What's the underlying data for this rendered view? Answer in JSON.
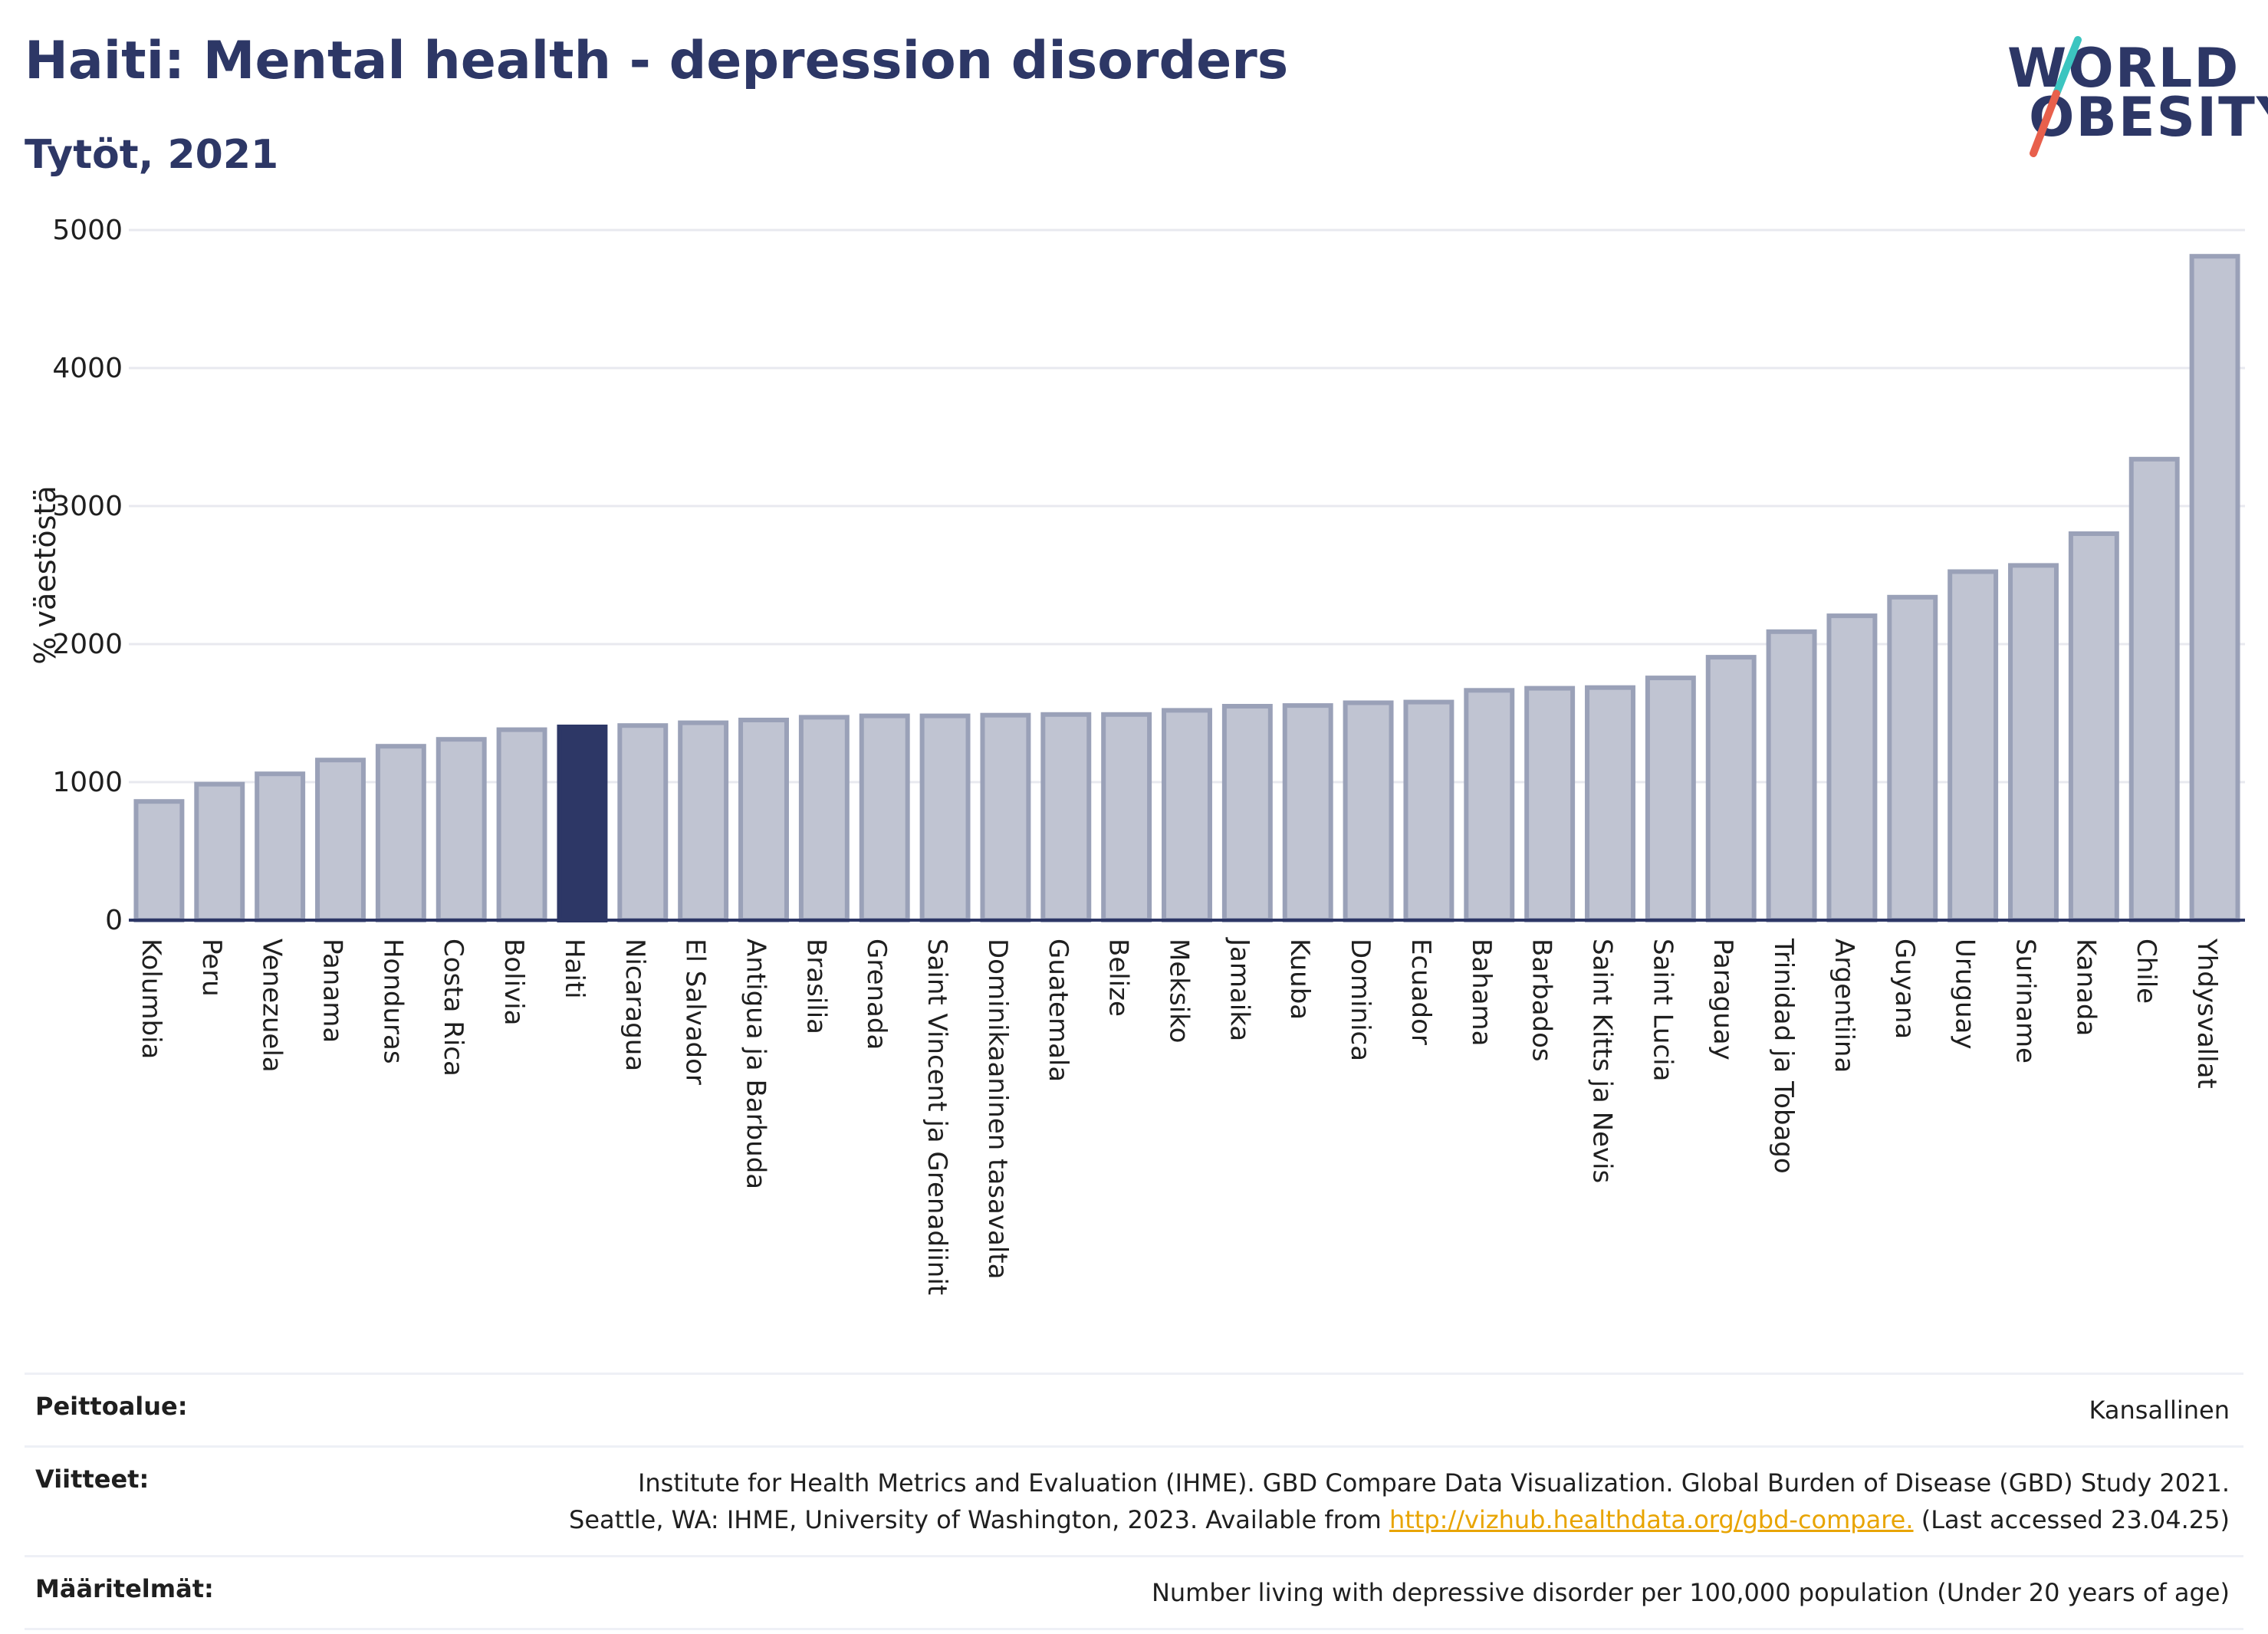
{
  "header": {
    "title": "Haiti: Mental health - depression disorders",
    "subtitle": "Tytöt, 2021"
  },
  "logo": {
    "line1": "WORLD",
    "line2": "OBESITY",
    "slash_colors": [
      "#3cc5c0",
      "#e8604c"
    ]
  },
  "colors": {
    "bar": "#c0c4d2",
    "bar_border": "#9aa1b8",
    "highlight": "#2d3766",
    "grid": "#e8e9ef",
    "axis": "#2d3766"
  },
  "chart_data": {
    "type": "bar",
    "ylabel": "% väestöstä",
    "ylim": [
      0,
      5000
    ],
    "yticks": [
      0,
      1000,
      2000,
      3000,
      4000,
      5000
    ],
    "highlight": "Haiti",
    "categories": [
      "Kolumbia",
      "Peru",
      "Venezuela",
      "Panama",
      "Honduras",
      "Costa Rica",
      "Bolivia",
      "Haiti",
      "Nicaragua",
      "El Salvador",
      "Antigua ja Barbuda",
      "Brasilia",
      "Grenada",
      "Saint Vincent ja Grenadiinit",
      "Dominikaaninen tasavalta",
      "Guatemala",
      "Belize",
      "Meksiko",
      "Jamaika",
      "Kuuba",
      "Dominica",
      "Ecuador",
      "Bahama",
      "Barbados",
      "Saint Kitts ja Nevis",
      "Saint Lucia",
      "Paraguay",
      "Trinidad ja Tobago",
      "Argentiina",
      "Guyana",
      "Uruguay",
      "Suriname",
      "Kanada",
      "Chile",
      "Yhdysvallat"
    ],
    "values": [
      860,
      985,
      1060,
      1160,
      1260,
      1310,
      1380,
      1400,
      1410,
      1430,
      1450,
      1470,
      1480,
      1480,
      1485,
      1490,
      1490,
      1520,
      1550,
      1555,
      1575,
      1580,
      1665,
      1680,
      1685,
      1755,
      1905,
      2090,
      2205,
      2340,
      2525,
      2570,
      2800,
      3340,
      4810
    ]
  },
  "footer": {
    "coverage_label": "Peittoalue:",
    "coverage_value": "Kansallinen",
    "refs_label": "Viitteet:",
    "refs_line1": "Institute for Health Metrics and Evaluation (IHME). GBD Compare Data Visualization. Global Burden of Disease (GBD) Study 2021.",
    "refs_line2_pre": "Seattle, WA: IHME, University of Washington, 2023. Available from ",
    "refs_link": "http://vizhub.healthdata.org/gbd-compare.",
    "refs_line2_post": " (Last accessed 23.04.25)",
    "def_label": "Määritelmät:",
    "def_value": "Number living with depressive disorder per 100,000 population (Under 20 years of age)"
  }
}
